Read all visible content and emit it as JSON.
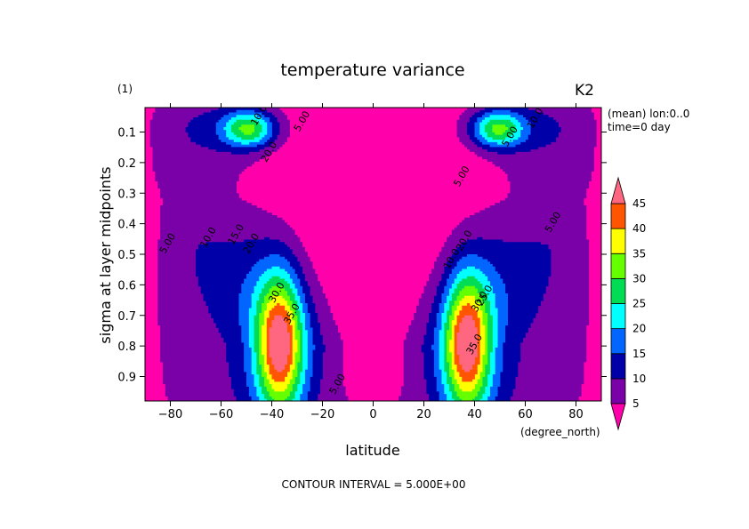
{
  "chart_data": {
    "type": "contour",
    "title": "temperature variance",
    "panel_label": "(1)",
    "experiment_label": "K2",
    "meta_lines": [
      "(mean) lon:0..0",
      "time=0  day"
    ],
    "xlabel": "latitude",
    "x_unit": "(degree_north)",
    "ylabel": "sigma at layer midpoints",
    "xlim": [
      -90,
      90
    ],
    "ylim": [
      0.02,
      0.98
    ],
    "y_inverted": true,
    "x_ticks": [
      -80,
      -60,
      -40,
      -20,
      0,
      20,
      40,
      60,
      80
    ],
    "x_tick_labels": [
      "−80",
      "−60",
      "−40",
      "−20",
      "0",
      "20",
      "40",
      "60",
      "80"
    ],
    "y_ticks": [
      0.1,
      0.2,
      0.3,
      0.4,
      0.5,
      0.6,
      0.7,
      0.8,
      0.9
    ],
    "y_tick_labels": [
      "0.1",
      "0.2",
      "0.3",
      "0.4",
      "0.5",
      "0.6",
      "0.7",
      "0.8",
      "0.9"
    ],
    "footer": "CONTOUR INTERVAL = 5.000E+00",
    "levels": [
      5,
      10,
      15,
      20,
      25,
      30,
      35,
      40,
      45
    ],
    "colorbar_labels": [
      "5",
      "10",
      "15",
      "20",
      "25",
      "30",
      "35",
      "40",
      "45"
    ],
    "fill_colors": [
      "#ff00aa",
      "#7a00a8",
      "#0000a8",
      "#0066ff",
      "#00ffff",
      "#00dd55",
      "#66ff00",
      "#ffff00",
      "#ff5500",
      "#ff6680"
    ],
    "contour_labels": [
      {
        "text": "5.00",
        "lat": -80,
        "sigma": 0.47
      },
      {
        "text": "10.0",
        "lat": -64,
        "sigma": 0.45
      },
      {
        "text": "15.0",
        "lat": -53,
        "sigma": 0.44
      },
      {
        "text": "20.0",
        "lat": -47,
        "sigma": 0.47
      },
      {
        "text": "30.0",
        "lat": -37,
        "sigma": 0.63
      },
      {
        "text": "35.0",
        "lat": -31,
        "sigma": 0.7
      },
      {
        "text": "10.0",
        "lat": -44,
        "sigma": 0.05
      },
      {
        "text": "5.00",
        "lat": -27,
        "sigma": 0.07
      },
      {
        "text": "20.0",
        "lat": -40,
        "sigma": 0.17
      },
      {
        "text": "5.00",
        "lat": -13,
        "sigma": 0.93
      },
      {
        "text": "10.0",
        "lat": 32,
        "sigma": 0.52
      },
      {
        "text": "20.0",
        "lat": 37,
        "sigma": 0.46
      },
      {
        "text": "25.0",
        "lat": 45,
        "sigma": 0.64
      },
      {
        "text": "30.0",
        "lat": 43,
        "sigma": 0.66
      },
      {
        "text": "35.0",
        "lat": 41,
        "sigma": 0.8
      },
      {
        "text": "10.0",
        "lat": 65,
        "sigma": 0.06
      },
      {
        "text": "5.00",
        "lat": 55,
        "sigma": 0.12
      },
      {
        "text": "5.00",
        "lat": 36,
        "sigma": 0.25
      },
      {
        "text": "5.00",
        "lat": 72,
        "sigma": 0.4
      }
    ]
  }
}
